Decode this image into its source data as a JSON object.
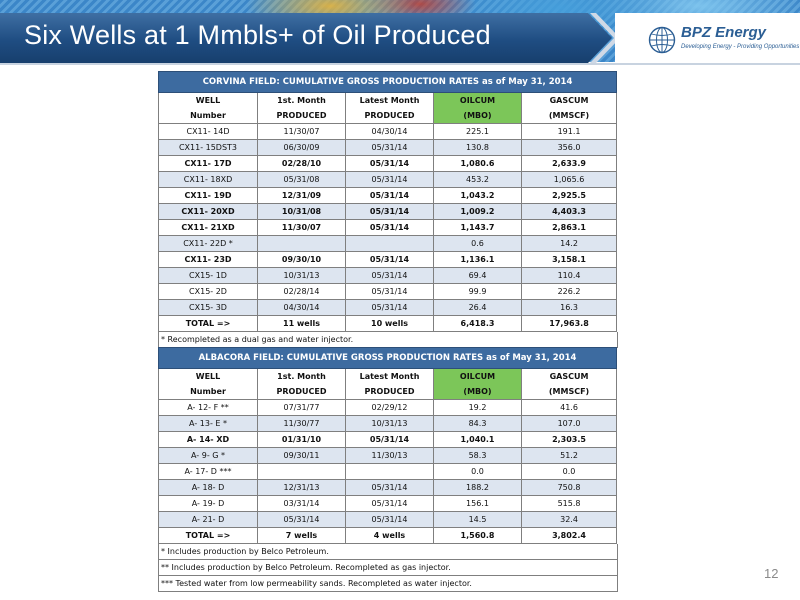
{
  "slide": {
    "title": "Six Wells at 1 Mmbls+ of Oil Produced",
    "page_number": "12"
  },
  "logo": {
    "name": "BPZ Energy",
    "tagline": "Developing Energy - Providing Opportunities"
  },
  "colors": {
    "title_band": "#1f4d82",
    "table_caption": "#3d6ba0",
    "oilcum_header": "#7cc659",
    "row_shade": "#dde5f0"
  },
  "columns": {
    "well": [
      "WELL",
      "Number"
    ],
    "first_month": [
      "1st. Month",
      "PRODUCED"
    ],
    "latest_month": [
      "Latest Month",
      "PRODUCED"
    ],
    "oilcum": [
      "OILCUM",
      "(MBO)"
    ],
    "gascum": [
      "GASCUM",
      "(MMSCF)"
    ]
  },
  "corvina": {
    "caption": "CORVINA FIELD:   CUMULATIVE GROSS PRODUCTION RATES as of May 31, 2014",
    "rows": [
      {
        "well": "CX11- 14D",
        "first": "11/30/07",
        "latest": "04/30/14",
        "oil": "225.1",
        "gas": "191.1",
        "bold": false
      },
      {
        "well": "CX11- 15DST3",
        "first": "06/30/09",
        "latest": "05/31/14",
        "oil": "130.8",
        "gas": "356.0",
        "bold": false
      },
      {
        "well": "CX11- 17D",
        "first": "02/28/10",
        "latest": "05/31/14",
        "oil": "1,080.6",
        "gas": "2,633.9",
        "bold": true
      },
      {
        "well": "CX11- 18XD",
        "first": "05/31/08",
        "latest": "05/31/14",
        "oil": "453.2",
        "gas": "1,065.6",
        "bold": false
      },
      {
        "well": "CX11- 19D",
        "first": "12/31/09",
        "latest": "05/31/14",
        "oil": "1,043.2",
        "gas": "2,925.5",
        "bold": true
      },
      {
        "well": "CX11- 20XD",
        "first": "10/31/08",
        "latest": "05/31/14",
        "oil": "1,009.2",
        "gas": "4,403.3",
        "bold": true
      },
      {
        "well": "CX11- 21XD",
        "first": "11/30/07",
        "latest": "05/31/14",
        "oil": "1,143.7",
        "gas": "2,863.1",
        "bold": true
      },
      {
        "well": "CX11- 22D *",
        "first": "",
        "latest": "",
        "oil": "0.6",
        "gas": "14.2",
        "bold": false
      },
      {
        "well": "CX11- 23D",
        "first": "09/30/10",
        "latest": "05/31/14",
        "oil": "1,136.1",
        "gas": "3,158.1",
        "bold": true
      },
      {
        "well": "CX15- 1D",
        "first": "10/31/13",
        "latest": "05/31/14",
        "oil": "69.4",
        "gas": "110.4",
        "bold": false
      },
      {
        "well": "CX15- 2D",
        "first": "02/28/14",
        "latest": "05/31/14",
        "oil": "99.9",
        "gas": "226.2",
        "bold": false
      },
      {
        "well": "CX15- 3D",
        "first": "04/30/14",
        "latest": "05/31/14",
        "oil": "26.4",
        "gas": "16.3",
        "bold": false
      }
    ],
    "total": {
      "label": "TOTAL =>",
      "first": "11 wells",
      "latest": "10 wells",
      "oil": "6,418.3",
      "gas": "17,963.8"
    },
    "footnotes": [
      "* Recompleted as a dual gas and water injector."
    ]
  },
  "albacora": {
    "caption": "ALBACORA FIELD:   CUMULATIVE GROSS PRODUCTION RATES as of May 31, 2014",
    "rows": [
      {
        "well": "A- 12- F **",
        "first": "07/31/77",
        "latest": "02/29/12",
        "oil": "19.2",
        "gas": "41.6",
        "bold": false
      },
      {
        "well": "A- 13- E *",
        "first": "11/30/77",
        "latest": "10/31/13",
        "oil": "84.3",
        "gas": "107.0",
        "bold": false
      },
      {
        "well": "A- 14- XD",
        "first": "01/31/10",
        "latest": "05/31/14",
        "oil": "1,040.1",
        "gas": "2,303.5",
        "bold": true
      },
      {
        "well": "A- 9- G *",
        "first": "09/30/11",
        "latest": "11/30/13",
        "oil": "58.3",
        "gas": "51.2",
        "bold": false
      },
      {
        "well": "A- 17- D ***",
        "first": "",
        "latest": "",
        "oil": "0.0",
        "gas": "0.0",
        "bold": false
      },
      {
        "well": "A- 18- D",
        "first": "12/31/13",
        "latest": "05/31/14",
        "oil": "188.2",
        "gas": "750.8",
        "bold": false
      },
      {
        "well": "A- 19- D",
        "first": "03/31/14",
        "latest": "05/31/14",
        "oil": "156.1",
        "gas": "515.8",
        "bold": false
      },
      {
        "well": "A- 21- D",
        "first": "05/31/14",
        "latest": "05/31/14",
        "oil": "14.5",
        "gas": "32.4",
        "bold": false
      }
    ],
    "total": {
      "label": "TOTAL =>",
      "first": "7 wells",
      "latest": "4 wells",
      "oil": "1,560.8",
      "gas": "3,802.4"
    },
    "footnotes": [
      "* Includes production by Belco Petroleum.",
      "** Includes production by Belco Petroleum.  Recompleted as gas injector.",
      "*** Tested water from low permeability sands.  Recompleted as water injector."
    ]
  }
}
